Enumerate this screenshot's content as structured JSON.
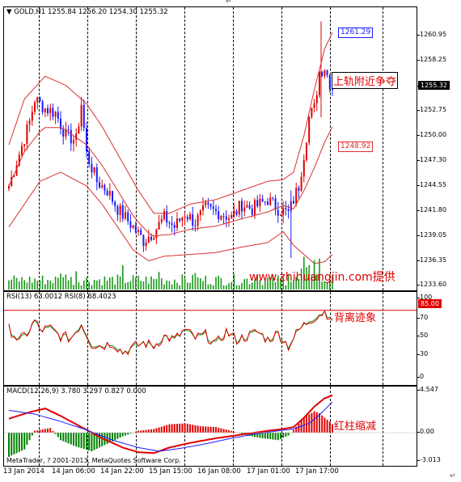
{
  "corner_mark": "↵",
  "main_panel": {
    "header_symbol": "GOLD,H1",
    "header_ohlc": "1255.84 1256.20 1254.30 1255.32",
    "price_ticks": [
      "1260.95",
      "1258.25",
      "1255.32",
      "1252.75",
      "1250.00",
      "1247.30",
      "1244.55",
      "1241.80",
      "1239.05",
      "1236.35",
      "1233.60"
    ],
    "current_price": "1255.32",
    "upper_band_label": "1261.29",
    "lower_band_label": "1248.92",
    "annotation_upper": "上轨附近争夺",
    "watermark": "www.zhihuangjin.com提供"
  },
  "rsi_panel": {
    "header": "RSI(13) 63.0012  RSI(8) 68.4023",
    "ticks": [
      "100",
      "70",
      "50",
      "30",
      "0"
    ],
    "level_tag": "85.00",
    "annotation": "背离迹象"
  },
  "macd_panel": {
    "header": "MACD(12,26,9) 3.780 3.297 0.827 0.000",
    "ticks": [
      "4.547",
      "0.00",
      "-3.013"
    ],
    "annotation": "红柱缩减",
    "copyright": "MetaTrader, ? 2001-2013, MetaQuotes Software Corp."
  },
  "time_axis": [
    "13 Jan 2014",
    "14 Jan 06:00",
    "14 Jan 22:00",
    "15 Jan 15:00",
    "16 Jan 08:00",
    "17 Jan 01:00",
    "17 Jan 17:00"
  ],
  "colors": {
    "bull": "#e00000",
    "bear": "#1a1aff",
    "band": "#d83030",
    "macd_hist_pos": "#e00000",
    "macd_hist_neg": "#008000",
    "signal": "#1a1aff"
  }
}
